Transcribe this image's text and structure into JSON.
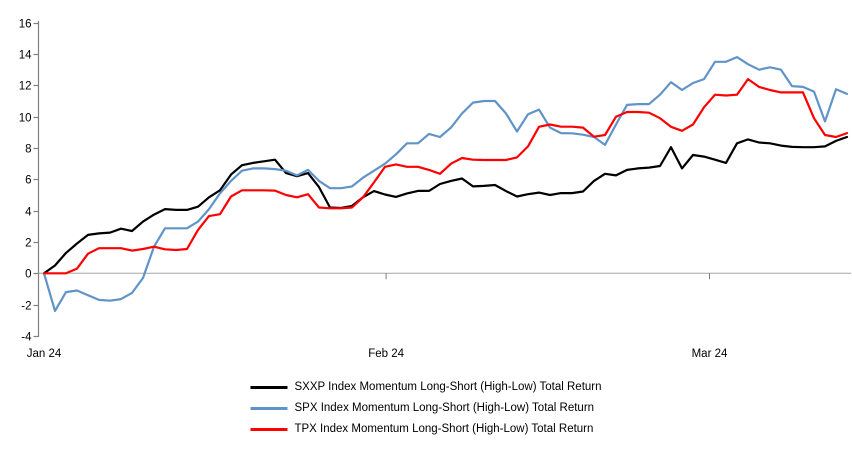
{
  "page": {
    "background": "#FFFFFF"
  },
  "chart_data": {
    "type": "line",
    "title": "",
    "x_description": "Daily observations from January 2024 through mid-March 2024",
    "x_axis": {
      "ticks": [
        {
          "label": "Jan 24",
          "index": 0
        },
        {
          "label": "Feb 24",
          "index": 31.1
        },
        {
          "label": "Mar 24",
          "index": 60.5
        }
      ]
    },
    "y_axis": {
      "ylim": [
        -4,
        16
      ],
      "tick_step": 2,
      "ticks": [
        16,
        14,
        12,
        10,
        8,
        6,
        4,
        2,
        0,
        "-2",
        "-4"
      ]
    },
    "grid": "none",
    "zero_line": true,
    "legend_position": "bottom-center",
    "colors": {
      "axis": "#808080",
      "zero_line": "#A6A6A6",
      "tick_text": "#000000"
    },
    "series": [
      {
        "id": "sxxp",
        "name": "SXXP Index Momentum Long-Short (High-Low) Total Return",
        "color": "#000000",
        "values": [
          0,
          0.5,
          1.3,
          1.9,
          2.45,
          2.55,
          2.6,
          2.85,
          2.7,
          3.3,
          3.75,
          4.1,
          4.05,
          4.05,
          4.25,
          4.85,
          5.3,
          6.3,
          6.9,
          7.05,
          7.15,
          7.25,
          6.4,
          6.2,
          6.4,
          5.5,
          4.2,
          4.17,
          4.3,
          4.85,
          5.25,
          5.03,
          4.88,
          5.1,
          5.26,
          5.26,
          5.7,
          5.9,
          6.05,
          5.55,
          5.58,
          5.64,
          5.25,
          4.9,
          5.05,
          5.15,
          5.0,
          5.12,
          5.12,
          5.22,
          5.9,
          6.35,
          6.25,
          6.6,
          6.7,
          6.75,
          6.85,
          8.05,
          6.7,
          7.55,
          7.45,
          7.25,
          7.05,
          8.3,
          8.55,
          8.35,
          8.3,
          8.15,
          8.07,
          8.05,
          8.05,
          8.1,
          8.45,
          8.7
        ]
      },
      {
        "id": "spx",
        "name": "SPX Index Momentum Long-Short (High-Low) Total Return",
        "color": "#6094C8",
        "values": [
          0,
          -2.4,
          -1.2,
          -1.1,
          -1.4,
          -1.7,
          -1.75,
          -1.65,
          -1.25,
          -0.3,
          1.7,
          2.87,
          2.87,
          2.87,
          3.3,
          4.1,
          5.1,
          5.9,
          6.55,
          6.7,
          6.7,
          6.65,
          6.55,
          6.25,
          6.6,
          5.9,
          5.43,
          5.43,
          5.55,
          6.1,
          6.55,
          7.0,
          7.6,
          8.3,
          8.3,
          8.9,
          8.7,
          9.3,
          10.2,
          10.9,
          11.0,
          11.0,
          10.2,
          9.05,
          10.15,
          10.45,
          9.3,
          8.95,
          8.94,
          8.85,
          8.7,
          8.2,
          9.5,
          10.75,
          10.8,
          10.8,
          11.4,
          12.2,
          11.7,
          12.15,
          12.4,
          13.5,
          13.5,
          13.8,
          13.35,
          13.0,
          13.15,
          13.0,
          11.95,
          11.9,
          11.6,
          9.7,
          11.75,
          11.45
        ]
      },
      {
        "id": "tpx",
        "name": "TPX Index Momentum Long-Short (High-Low) Total Return",
        "color": "#FF0000",
        "values": [
          0,
          0,
          0,
          0.3,
          1.25,
          1.6,
          1.6,
          1.6,
          1.45,
          1.55,
          1.7,
          1.53,
          1.49,
          1.55,
          2.77,
          3.65,
          3.77,
          4.9,
          5.3,
          5.3,
          5.3,
          5.28,
          5.0,
          4.85,
          5.05,
          4.2,
          4.15,
          4.15,
          4.2,
          4.85,
          5.8,
          6.8,
          6.95,
          6.8,
          6.8,
          6.6,
          6.35,
          7.0,
          7.36,
          7.25,
          7.23,
          7.23,
          7.23,
          7.4,
          8.1,
          9.35,
          9.5,
          9.36,
          9.36,
          9.3,
          8.72,
          8.83,
          10.0,
          10.3,
          10.3,
          10.25,
          9.9,
          9.35,
          9.1,
          9.5,
          10.6,
          11.4,
          11.35,
          11.4,
          12.4,
          11.9,
          11.7,
          11.55,
          11.55,
          11.55,
          9.9,
          8.83,
          8.7,
          8.95
        ]
      }
    ]
  }
}
